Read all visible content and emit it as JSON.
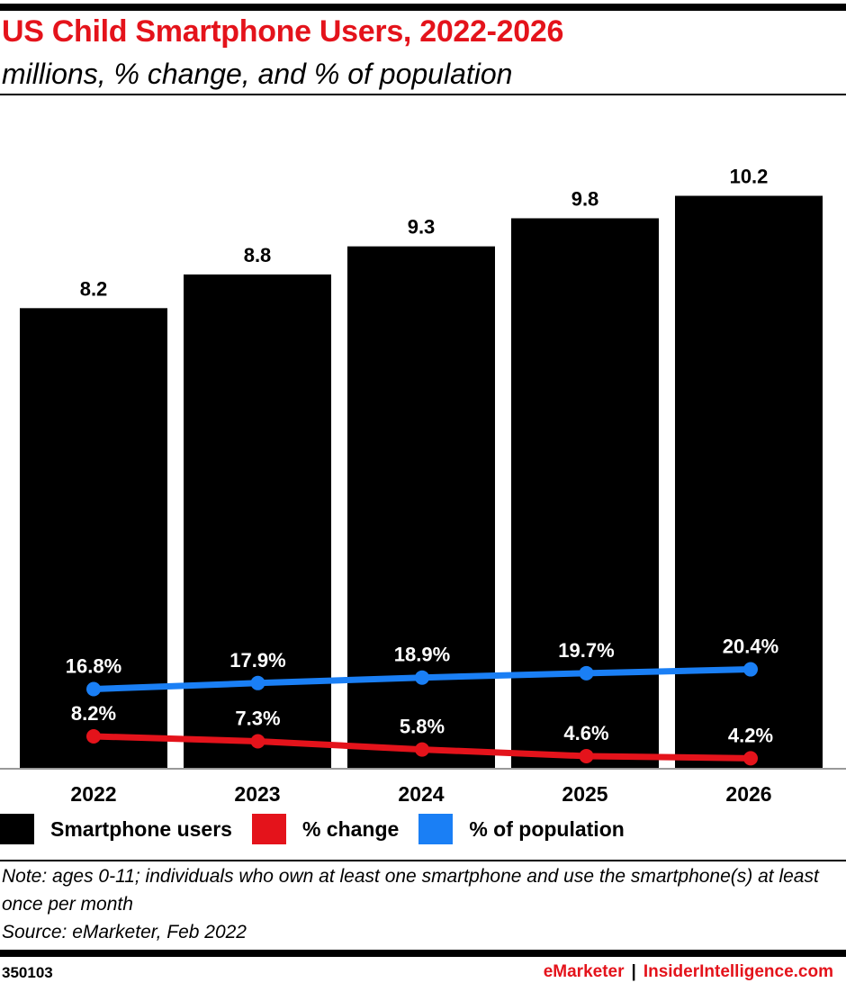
{
  "title": "US Child Smartphone Users, 2022-2026",
  "subtitle": "millions, % change, and % of population",
  "colors": {
    "bar": "#000000",
    "change": "#e4131b",
    "population": "#1a7ff5",
    "brand": "#e4131b"
  },
  "chart_data": {
    "type": "bar",
    "categories": [
      "2022",
      "2023",
      "2024",
      "2025",
      "2026"
    ],
    "series": [
      {
        "name": "Smartphone users",
        "type": "bar",
        "values": [
          8.2,
          8.8,
          9.3,
          9.8,
          10.2
        ],
        "labels": [
          "8.2",
          "8.8",
          "9.3",
          "9.8",
          "10.2"
        ]
      },
      {
        "name": "% change",
        "type": "line",
        "values": [
          8.2,
          7.3,
          5.8,
          4.6,
          4.2
        ],
        "labels": [
          "8.2%",
          "7.3%",
          "5.8%",
          "4.6%",
          "4.2%"
        ]
      },
      {
        "name": "% of population",
        "type": "line",
        "values": [
          16.8,
          17.9,
          18.9,
          19.7,
          20.4
        ],
        "labels": [
          "16.8%",
          "17.9%",
          "18.9%",
          "19.7%",
          "20.4%"
        ]
      }
    ],
    "legend_position": "bottom-left"
  },
  "legend": {
    "users": "Smartphone users",
    "change": "% change",
    "population": "% of population"
  },
  "note": "Note: ages 0-11; individuals who own at least one smartphone and use the smartphone(s) at least once per month",
  "source": "Source: eMarketer, Feb 2022",
  "chart_id": "350103",
  "brand": {
    "emarketer": "eMarketer",
    "separator": "|",
    "insider": "InsiderIntelligence.com"
  }
}
